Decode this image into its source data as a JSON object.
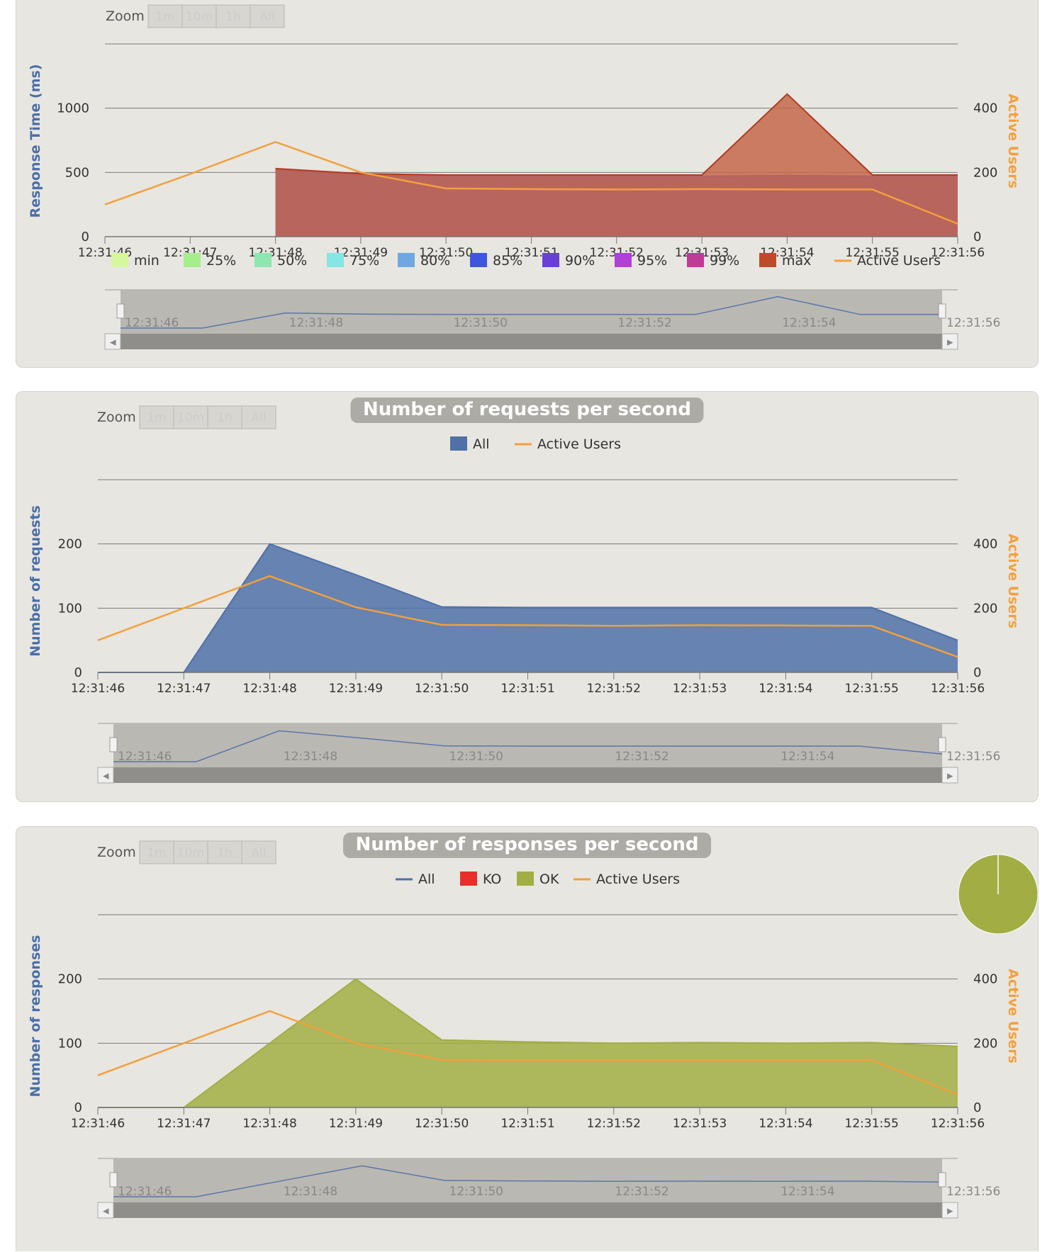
{
  "zoom": {
    "label": "Zoom",
    "buttons": [
      "1m",
      "10m",
      "1h",
      "All"
    ]
  },
  "navigator_labels": [
    "12:31:46",
    "12:31:48",
    "12:31:50",
    "12:31:52",
    "12:31:54",
    "12:31:56"
  ],
  "chart_data": [
    {
      "id": "response-time",
      "type": "area",
      "title": "",
      "ylabel": "Response Time (ms)",
      "y2label": "Active Users",
      "categories": [
        "12:31:46",
        "12:31:47",
        "12:31:48",
        "12:31:49",
        "12:31:50",
        "12:31:51",
        "12:31:52",
        "12:31:53",
        "12:31:54",
        "12:31:55",
        "12:31:56"
      ],
      "y_ticks": [
        0,
        500,
        1000
      ],
      "y2_ticks": [
        0,
        200,
        400
      ],
      "ylim": [
        0,
        1500
      ],
      "y2lim": [
        0,
        600
      ],
      "legend": [
        {
          "name": "min",
          "color": "#d6f79e"
        },
        {
          "name": "25%",
          "color": "#a6ee8c"
        },
        {
          "name": "50%",
          "color": "#8ee6b0"
        },
        {
          "name": "75%",
          "color": "#86e6e3"
        },
        {
          "name": "80%",
          "color": "#6fa8e0"
        },
        {
          "name": "85%",
          "color": "#3f55e0"
        },
        {
          "name": "90%",
          "color": "#6a3fd6"
        },
        {
          "name": "95%",
          "color": "#b040d6"
        },
        {
          "name": "99%",
          "color": "#c03a98"
        },
        {
          "name": "max",
          "color": "#c04a2c"
        },
        {
          "name": "Active Users",
          "color": "#f2a03d",
          "line": true
        }
      ],
      "series": [
        {
          "name": "min",
          "color": "#c2f494",
          "values": [
            null,
            null,
            440,
            430,
            425,
            425,
            425,
            425,
            425,
            425,
            425
          ]
        },
        {
          "name": "75%",
          "color": "#8ee6b0",
          "values": [
            null,
            null,
            490,
            470,
            460,
            460,
            460,
            460,
            460,
            460,
            460
          ]
        },
        {
          "name": "90%",
          "color": "#6a3fd6",
          "values": [
            null,
            null,
            520,
            480,
            470,
            470,
            470,
            470,
            475,
            470,
            470
          ]
        },
        {
          "name": "max",
          "color": "#c4674a",
          "values": [
            null,
            null,
            530,
            490,
            480,
            480,
            480,
            480,
            1110,
            480,
            480
          ]
        }
      ],
      "active_users": [
        100,
        195,
        295,
        200,
        150,
        148,
        147,
        148,
        147,
        147,
        40
      ]
    },
    {
      "id": "requests",
      "type": "area",
      "title": "Number of requests per second",
      "ylabel": "Number of requests",
      "y2label": "Active Users",
      "categories": [
        "12:31:46",
        "12:31:47",
        "12:31:48",
        "12:31:49",
        "12:31:50",
        "12:31:51",
        "12:31:52",
        "12:31:53",
        "12:31:54",
        "12:31:55",
        "12:31:56"
      ],
      "y_ticks": [
        0,
        100,
        200
      ],
      "y2_ticks": [
        0,
        200,
        400
      ],
      "ylim": [
        0,
        300
      ],
      "y2lim": [
        0,
        600
      ],
      "legend": [
        {
          "name": "All",
          "color": "#4f71a8"
        },
        {
          "name": "Active Users",
          "color": "#f2a03d",
          "line": true
        }
      ],
      "series": [
        {
          "name": "All",
          "color": "#4f71a8",
          "values": [
            0,
            0,
            200,
            152,
            102,
            101,
            101,
            101,
            101,
            101,
            50
          ]
        }
      ],
      "active_users": [
        100,
        200,
        300,
        203,
        148,
        147,
        145,
        147,
        146,
        145,
        48
      ]
    },
    {
      "id": "responses",
      "type": "area",
      "title": "Number of responses per second",
      "ylabel": "Number of responses",
      "y2label": "Active Users",
      "categories": [
        "12:31:46",
        "12:31:47",
        "12:31:48",
        "12:31:49",
        "12:31:50",
        "12:31:51",
        "12:31:52",
        "12:31:53",
        "12:31:54",
        "12:31:55",
        "12:31:56"
      ],
      "y_ticks": [
        0,
        100,
        200
      ],
      "y2_ticks": [
        0,
        200,
        400
      ],
      "ylim": [
        0,
        300
      ],
      "y2lim": [
        0,
        600
      ],
      "legend": [
        {
          "name": "All",
          "color": "#4f71a8",
          "line": true
        },
        {
          "name": "KO",
          "color": "#e8302a"
        },
        {
          "name": "OK",
          "color": "#a2ae44"
        },
        {
          "name": "Active Users",
          "color": "#f2a03d",
          "line": true
        }
      ],
      "series": [
        {
          "name": "OK",
          "color": "#a2ae44",
          "values": [
            0,
            0,
            100,
            200,
            105,
            102,
            100,
            101,
            100,
            101,
            95
          ]
        }
      ],
      "active_users": [
        100,
        200,
        300,
        200,
        148,
        147,
        147,
        147,
        147,
        147,
        40
      ],
      "pie": {
        "OK": 99.8,
        "KO": 0.2
      }
    }
  ]
}
